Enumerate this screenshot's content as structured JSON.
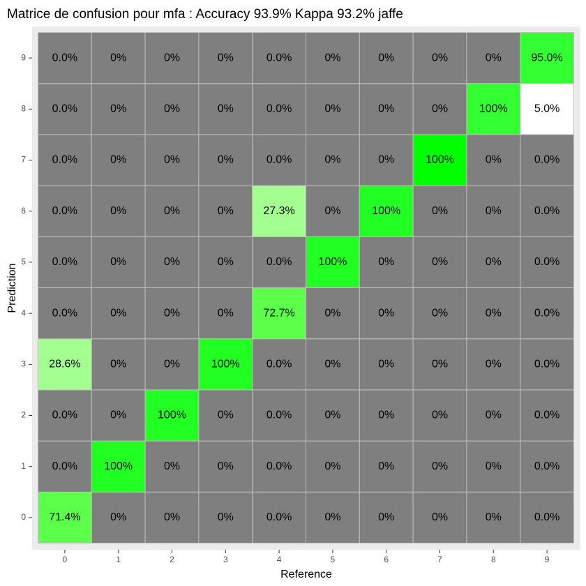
{
  "chart_data": {
    "type": "heatmap",
    "title": "Matrice de confusion pour mfa : Accuracy 93.9% Kappa 93.2% jaffe",
    "xlabel": "Reference",
    "ylabel": "Prediction",
    "x_categories": [
      "0",
      "1",
      "2",
      "3",
      "4",
      "5",
      "6",
      "7",
      "8",
      "9"
    ],
    "y_categories": [
      "0",
      "1",
      "2",
      "3",
      "4",
      "5",
      "6",
      "7",
      "8",
      "9"
    ],
    "grid": true,
    "colors": {
      "default_cell": "#7f7f7f",
      "panel_background": "#ebebeb",
      "grid_line": "#bfbfbf",
      "white_cell": "#ffffff"
    },
    "cells": [
      {
        "x": "0",
        "y": "0",
        "label": "71.4%",
        "fill": "#5cff4a"
      },
      {
        "x": "1",
        "y": "0",
        "label": "0%"
      },
      {
        "x": "2",
        "y": "0",
        "label": "0%"
      },
      {
        "x": "3",
        "y": "0",
        "label": "0%"
      },
      {
        "x": "4",
        "y": "0",
        "label": "0.0%"
      },
      {
        "x": "5",
        "y": "0",
        "label": "0%"
      },
      {
        "x": "6",
        "y": "0",
        "label": "0%"
      },
      {
        "x": "7",
        "y": "0",
        "label": "0%"
      },
      {
        "x": "8",
        "y": "0",
        "label": "0%"
      },
      {
        "x": "9",
        "y": "0",
        "label": "0.0%"
      },
      {
        "x": "0",
        "y": "1",
        "label": "0.0%"
      },
      {
        "x": "1",
        "y": "1",
        "label": "100%",
        "fill": "#22ff22"
      },
      {
        "x": "2",
        "y": "1",
        "label": "0%"
      },
      {
        "x": "3",
        "y": "1",
        "label": "0%"
      },
      {
        "x": "4",
        "y": "1",
        "label": "0.0%"
      },
      {
        "x": "5",
        "y": "1",
        "label": "0%"
      },
      {
        "x": "6",
        "y": "1",
        "label": "0%"
      },
      {
        "x": "7",
        "y": "1",
        "label": "0%"
      },
      {
        "x": "8",
        "y": "1",
        "label": "0%"
      },
      {
        "x": "9",
        "y": "1",
        "label": "0.0%"
      },
      {
        "x": "0",
        "y": "2",
        "label": "0.0%"
      },
      {
        "x": "1",
        "y": "2",
        "label": "0%"
      },
      {
        "x": "2",
        "y": "2",
        "label": "100%",
        "fill": "#22ff22"
      },
      {
        "x": "3",
        "y": "2",
        "label": "0%"
      },
      {
        "x": "4",
        "y": "2",
        "label": "0.0%"
      },
      {
        "x": "5",
        "y": "2",
        "label": "0%"
      },
      {
        "x": "6",
        "y": "2",
        "label": "0%"
      },
      {
        "x": "7",
        "y": "2",
        "label": "0%"
      },
      {
        "x": "8",
        "y": "2",
        "label": "0%"
      },
      {
        "x": "9",
        "y": "2",
        "label": "0.0%"
      },
      {
        "x": "0",
        "y": "3",
        "label": "28.6%",
        "fill": "#a3ff8f"
      },
      {
        "x": "1",
        "y": "3",
        "label": "0%"
      },
      {
        "x": "2",
        "y": "3",
        "label": "0%"
      },
      {
        "x": "3",
        "y": "3",
        "label": "100%",
        "fill": "#22ff22"
      },
      {
        "x": "4",
        "y": "3",
        "label": "0.0%"
      },
      {
        "x": "5",
        "y": "3",
        "label": "0%"
      },
      {
        "x": "6",
        "y": "3",
        "label": "0%"
      },
      {
        "x": "7",
        "y": "3",
        "label": "0%"
      },
      {
        "x": "8",
        "y": "3",
        "label": "0%"
      },
      {
        "x": "9",
        "y": "3",
        "label": "0.0%"
      },
      {
        "x": "0",
        "y": "4",
        "label": "0.0%"
      },
      {
        "x": "1",
        "y": "4",
        "label": "0%"
      },
      {
        "x": "2",
        "y": "4",
        "label": "0%"
      },
      {
        "x": "3",
        "y": "4",
        "label": "0%"
      },
      {
        "x": "4",
        "y": "4",
        "label": "72.7%",
        "fill": "#5cff4a"
      },
      {
        "x": "5",
        "y": "4",
        "label": "0%"
      },
      {
        "x": "6",
        "y": "4",
        "label": "0%"
      },
      {
        "x": "7",
        "y": "4",
        "label": "0%"
      },
      {
        "x": "8",
        "y": "4",
        "label": "0%"
      },
      {
        "x": "9",
        "y": "4",
        "label": "0.0%"
      },
      {
        "x": "0",
        "y": "5",
        "label": "0.0%"
      },
      {
        "x": "1",
        "y": "5",
        "label": "0%"
      },
      {
        "x": "2",
        "y": "5",
        "label": "0%"
      },
      {
        "x": "3",
        "y": "5",
        "label": "0%"
      },
      {
        "x": "4",
        "y": "5",
        "label": "0.0%"
      },
      {
        "x": "5",
        "y": "5",
        "label": "100%",
        "fill": "#22ff22"
      },
      {
        "x": "6",
        "y": "5",
        "label": "0%"
      },
      {
        "x": "7",
        "y": "5",
        "label": "0%"
      },
      {
        "x": "8",
        "y": "5",
        "label": "0%"
      },
      {
        "x": "9",
        "y": "5",
        "label": "0.0%"
      },
      {
        "x": "0",
        "y": "6",
        "label": "0.0%"
      },
      {
        "x": "1",
        "y": "6",
        "label": "0%"
      },
      {
        "x": "2",
        "y": "6",
        "label": "0%"
      },
      {
        "x": "3",
        "y": "6",
        "label": "0%"
      },
      {
        "x": "4",
        "y": "6",
        "label": "27.3%",
        "fill": "#a3ff8f"
      },
      {
        "x": "5",
        "y": "6",
        "label": "0%"
      },
      {
        "x": "6",
        "y": "6",
        "label": "100%",
        "fill": "#22ff22"
      },
      {
        "x": "7",
        "y": "6",
        "label": "0%"
      },
      {
        "x": "8",
        "y": "6",
        "label": "0%"
      },
      {
        "x": "9",
        "y": "6",
        "label": "0.0%"
      },
      {
        "x": "0",
        "y": "7",
        "label": "0.0%"
      },
      {
        "x": "1",
        "y": "7",
        "label": "0%"
      },
      {
        "x": "2",
        "y": "7",
        "label": "0%"
      },
      {
        "x": "3",
        "y": "7",
        "label": "0%"
      },
      {
        "x": "4",
        "y": "7",
        "label": "0.0%"
      },
      {
        "x": "5",
        "y": "7",
        "label": "0%"
      },
      {
        "x": "6",
        "y": "7",
        "label": "0%"
      },
      {
        "x": "7",
        "y": "7",
        "label": "100%",
        "fill": "#00ff00"
      },
      {
        "x": "8",
        "y": "7",
        "label": "0%"
      },
      {
        "x": "9",
        "y": "7",
        "label": "0.0%"
      },
      {
        "x": "0",
        "y": "8",
        "label": "0.0%"
      },
      {
        "x": "1",
        "y": "8",
        "label": "0%"
      },
      {
        "x": "2",
        "y": "8",
        "label": "0%"
      },
      {
        "x": "3",
        "y": "8",
        "label": "0%"
      },
      {
        "x": "4",
        "y": "8",
        "label": "0.0%"
      },
      {
        "x": "5",
        "y": "8",
        "label": "0%"
      },
      {
        "x": "6",
        "y": "8",
        "label": "0%"
      },
      {
        "x": "7",
        "y": "8",
        "label": "0%"
      },
      {
        "x": "8",
        "y": "8",
        "label": "100%",
        "fill": "#33ff33"
      },
      {
        "x": "9",
        "y": "8",
        "label": "5.0%",
        "fill": "#ffffff"
      },
      {
        "x": "0",
        "y": "9",
        "label": "0.0%"
      },
      {
        "x": "1",
        "y": "9",
        "label": "0%"
      },
      {
        "x": "2",
        "y": "9",
        "label": "0%"
      },
      {
        "x": "3",
        "y": "9",
        "label": "0%"
      },
      {
        "x": "4",
        "y": "9",
        "label": "0.0%"
      },
      {
        "x": "5",
        "y": "9",
        "label": "0%"
      },
      {
        "x": "6",
        "y": "9",
        "label": "0%"
      },
      {
        "x": "7",
        "y": "9",
        "label": "0%"
      },
      {
        "x": "8",
        "y": "9",
        "label": "0%"
      },
      {
        "x": "9",
        "y": "9",
        "label": "95.0%",
        "fill": "#33ff33"
      }
    ]
  }
}
